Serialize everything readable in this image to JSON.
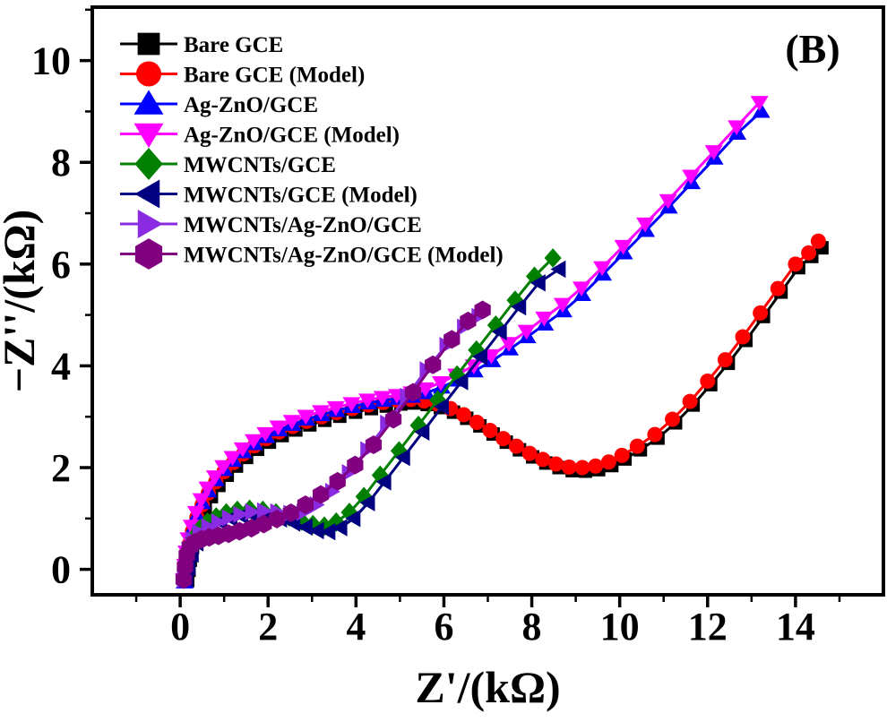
{
  "panel_label": "(B)",
  "chart_data": {
    "type": "scatter",
    "title": "",
    "xlabel": "Z'/(kΩ)",
    "ylabel": "−Z''/(kΩ)",
    "xlim": [
      -2,
      16
    ],
    "ylim": [
      -0.5,
      11.05
    ],
    "x_major_ticks": [
      0,
      2,
      4,
      6,
      8,
      10,
      12,
      14
    ],
    "x_minor_ticks": [
      -1,
      1,
      3,
      5,
      7,
      9,
      11,
      13,
      15
    ],
    "y_major_ticks": [
      0,
      2,
      4,
      6,
      8,
      10
    ],
    "y_minor_ticks": [
      1,
      3,
      5,
      7,
      9,
      11
    ],
    "grid": false,
    "legend_position": "top-left",
    "frame_color": "#000000",
    "series": [
      {
        "name": "Bare GCE",
        "marker": "square",
        "color": "#000000",
        "marker_size": 15,
        "points": [
          [
            0.17,
            -0.22
          ],
          [
            0.2,
            -0.02
          ],
          [
            0.23,
            0.18
          ],
          [
            0.28,
            0.43
          ],
          [
            0.35,
            0.68
          ],
          [
            0.45,
            0.95
          ],
          [
            0.57,
            1.2
          ],
          [
            0.71,
            1.43
          ],
          [
            0.88,
            1.65
          ],
          [
            1.07,
            1.85
          ],
          [
            1.28,
            2.03
          ],
          [
            1.51,
            2.2
          ],
          [
            1.76,
            2.36
          ],
          [
            2.03,
            2.5
          ],
          [
            2.32,
            2.63
          ],
          [
            2.63,
            2.74
          ],
          [
            2.95,
            2.84
          ],
          [
            3.29,
            2.93
          ],
          [
            3.63,
            3.01
          ],
          [
            3.99,
            3.09
          ],
          [
            4.35,
            3.16
          ],
          [
            4.69,
            3.21
          ],
          [
            5.02,
            3.25
          ],
          [
            5.32,
            3.27
          ],
          [
            5.62,
            3.24
          ],
          [
            5.92,
            3.18
          ],
          [
            6.22,
            3.09
          ],
          [
            6.52,
            2.97
          ],
          [
            6.82,
            2.82
          ],
          [
            7.12,
            2.66
          ],
          [
            7.42,
            2.5
          ],
          [
            7.72,
            2.35
          ],
          [
            8.02,
            2.21
          ],
          [
            8.32,
            2.09
          ],
          [
            8.62,
            2.0
          ],
          [
            8.92,
            1.94
          ],
          [
            9.22,
            1.93
          ],
          [
            9.52,
            1.96
          ],
          [
            9.82,
            2.04
          ],
          [
            10.12,
            2.17
          ],
          [
            10.47,
            2.35
          ],
          [
            10.87,
            2.58
          ],
          [
            11.27,
            2.88
          ],
          [
            11.67,
            3.23
          ],
          [
            12.07,
            3.63
          ],
          [
            12.47,
            4.05
          ],
          [
            12.87,
            4.5
          ],
          [
            13.27,
            4.97
          ],
          [
            13.67,
            5.45
          ],
          [
            14.07,
            5.93
          ],
          [
            14.37,
            6.15
          ],
          [
            14.6,
            6.32
          ]
        ]
      },
      {
        "name": "Bare GCE (Model)",
        "marker": "circle",
        "color": "#FF0000",
        "marker_size": 17,
        "points": [
          [
            0.1,
            -0.15
          ],
          [
            0.13,
            0.05
          ],
          [
            0.16,
            0.25
          ],
          [
            0.21,
            0.5
          ],
          [
            0.28,
            0.75
          ],
          [
            0.38,
            1.02
          ],
          [
            0.5,
            1.27
          ],
          [
            0.64,
            1.5
          ],
          [
            0.81,
            1.72
          ],
          [
            1.0,
            1.92
          ],
          [
            1.21,
            2.1
          ],
          [
            1.44,
            2.27
          ],
          [
            1.69,
            2.43
          ],
          [
            1.96,
            2.57
          ],
          [
            2.25,
            2.7
          ],
          [
            2.56,
            2.81
          ],
          [
            2.88,
            2.91
          ],
          [
            3.22,
            3.0
          ],
          [
            3.56,
            3.08
          ],
          [
            3.92,
            3.16
          ],
          [
            4.28,
            3.23
          ],
          [
            4.62,
            3.28
          ],
          [
            4.95,
            3.32
          ],
          [
            5.25,
            3.34
          ],
          [
            5.55,
            3.31
          ],
          [
            5.85,
            3.25
          ],
          [
            6.15,
            3.16
          ],
          [
            6.45,
            3.04
          ],
          [
            6.75,
            2.89
          ],
          [
            7.05,
            2.73
          ],
          [
            7.35,
            2.57
          ],
          [
            7.65,
            2.42
          ],
          [
            7.95,
            2.28
          ],
          [
            8.25,
            2.16
          ],
          [
            8.55,
            2.07
          ],
          [
            8.85,
            2.01
          ],
          [
            9.15,
            2.0
          ],
          [
            9.45,
            2.03
          ],
          [
            9.75,
            2.11
          ],
          [
            10.05,
            2.24
          ],
          [
            10.4,
            2.42
          ],
          [
            10.8,
            2.65
          ],
          [
            11.2,
            2.95
          ],
          [
            11.6,
            3.3
          ],
          [
            12.0,
            3.7
          ],
          [
            12.4,
            4.12
          ],
          [
            12.8,
            4.57
          ],
          [
            13.2,
            5.04
          ],
          [
            13.6,
            5.52
          ],
          [
            14.0,
            6.0
          ],
          [
            14.3,
            6.22
          ],
          [
            14.52,
            6.45
          ]
        ]
      },
      {
        "name": "Ag-ZnO/GCE",
        "marker": "triangle-up",
        "color": "#0000FF",
        "marker_size": 19,
        "points": [
          [
            0.1,
            -0.25
          ],
          [
            0.13,
            0.02
          ],
          [
            0.16,
            0.28
          ],
          [
            0.21,
            0.54
          ],
          [
            0.28,
            0.79
          ],
          [
            0.38,
            1.06
          ],
          [
            0.5,
            1.31
          ],
          [
            0.64,
            1.54
          ],
          [
            0.81,
            1.76
          ],
          [
            1.0,
            1.96
          ],
          [
            1.21,
            2.14
          ],
          [
            1.44,
            2.31
          ],
          [
            1.69,
            2.47
          ],
          [
            1.96,
            2.61
          ],
          [
            2.25,
            2.74
          ],
          [
            2.56,
            2.85
          ],
          [
            2.88,
            2.95
          ],
          [
            3.22,
            3.04
          ],
          [
            3.56,
            3.12
          ],
          [
            3.92,
            3.2
          ],
          [
            4.28,
            3.27
          ],
          [
            4.62,
            3.32
          ],
          [
            4.95,
            3.36
          ],
          [
            5.28,
            3.4
          ],
          [
            5.6,
            3.47
          ],
          [
            5.95,
            3.58
          ],
          [
            6.3,
            3.72
          ],
          [
            6.7,
            3.9
          ],
          [
            7.1,
            4.1
          ],
          [
            7.5,
            4.33
          ],
          [
            7.9,
            4.57
          ],
          [
            8.3,
            4.82
          ],
          [
            8.72,
            5.08
          ],
          [
            9.15,
            5.4
          ],
          [
            9.62,
            5.8
          ],
          [
            10.1,
            6.22
          ],
          [
            10.6,
            6.66
          ],
          [
            11.12,
            7.12
          ],
          [
            11.64,
            7.6
          ],
          [
            12.16,
            8.08
          ],
          [
            12.68,
            8.57
          ],
          [
            13.22,
            9.0
          ]
        ]
      },
      {
        "name": "Ag-ZnO/GCE (Model)",
        "marker": "triangle-down",
        "color": "#FF00FF",
        "marker_size": 19,
        "points": [
          [
            0.08,
            -0.2
          ],
          [
            0.11,
            0.08
          ],
          [
            0.14,
            0.34
          ],
          [
            0.19,
            0.6
          ],
          [
            0.26,
            0.85
          ],
          [
            0.36,
            1.12
          ],
          [
            0.48,
            1.37
          ],
          [
            0.62,
            1.6
          ],
          [
            0.79,
            1.82
          ],
          [
            0.98,
            2.02
          ],
          [
            1.19,
            2.2
          ],
          [
            1.42,
            2.37
          ],
          [
            1.67,
            2.53
          ],
          [
            1.94,
            2.67
          ],
          [
            2.23,
            2.8
          ],
          [
            2.54,
            2.91
          ],
          [
            2.86,
            3.01
          ],
          [
            3.2,
            3.1
          ],
          [
            3.54,
            3.18
          ],
          [
            3.9,
            3.26
          ],
          [
            4.26,
            3.33
          ],
          [
            4.6,
            3.38
          ],
          [
            4.93,
            3.42
          ],
          [
            5.26,
            3.47
          ],
          [
            5.58,
            3.55
          ],
          [
            5.93,
            3.67
          ],
          [
            6.28,
            3.82
          ],
          [
            6.68,
            4.0
          ],
          [
            7.08,
            4.2
          ],
          [
            7.48,
            4.44
          ],
          [
            7.88,
            4.68
          ],
          [
            8.28,
            4.94
          ],
          [
            8.7,
            5.21
          ],
          [
            9.13,
            5.53
          ],
          [
            9.6,
            5.93
          ],
          [
            10.08,
            6.35
          ],
          [
            10.58,
            6.79
          ],
          [
            11.1,
            7.25
          ],
          [
            11.62,
            7.73
          ],
          [
            12.14,
            8.21
          ],
          [
            12.66,
            8.7
          ],
          [
            13.18,
            9.18
          ]
        ]
      },
      {
        "name": "MWCNTs/GCE",
        "marker": "diamond",
        "color": "#007F00",
        "marker_size": 19,
        "points": [
          [
            0.1,
            -0.1
          ],
          [
            0.14,
            0.15
          ],
          [
            0.2,
            0.4
          ],
          [
            0.3,
            0.62
          ],
          [
            0.45,
            0.8
          ],
          [
            0.62,
            0.93
          ],
          [
            0.82,
            1.03
          ],
          [
            1.05,
            1.11
          ],
          [
            1.3,
            1.16
          ],
          [
            1.58,
            1.18
          ],
          [
            1.88,
            1.16
          ],
          [
            2.18,
            1.11
          ],
          [
            2.48,
            1.03
          ],
          [
            2.76,
            0.95
          ],
          [
            3.02,
            0.88
          ],
          [
            3.28,
            0.85
          ],
          [
            3.55,
            0.93
          ],
          [
            3.85,
            1.12
          ],
          [
            4.18,
            1.43
          ],
          [
            4.55,
            1.85
          ],
          [
            4.98,
            2.33
          ],
          [
            5.42,
            2.83
          ],
          [
            5.86,
            3.33
          ],
          [
            6.3,
            3.82
          ],
          [
            6.74,
            4.31
          ],
          [
            7.18,
            4.8
          ],
          [
            7.62,
            5.29
          ],
          [
            8.06,
            5.76
          ],
          [
            8.48,
            6.12
          ]
        ]
      },
      {
        "name": "MWCNTs/GCE (Model)",
        "marker": "triangle-left",
        "color": "#000080",
        "marker_size": 19,
        "points": [
          [
            0.15,
            -0.18
          ],
          [
            0.2,
            0.05
          ],
          [
            0.27,
            0.3
          ],
          [
            0.38,
            0.52
          ],
          [
            0.53,
            0.7
          ],
          [
            0.71,
            0.83
          ],
          [
            0.92,
            0.93
          ],
          [
            1.15,
            1.0
          ],
          [
            1.4,
            1.05
          ],
          [
            1.68,
            1.06
          ],
          [
            1.98,
            1.04
          ],
          [
            2.28,
            0.99
          ],
          [
            2.58,
            0.91
          ],
          [
            2.86,
            0.83
          ],
          [
            3.12,
            0.76
          ],
          [
            3.38,
            0.74
          ],
          [
            3.65,
            0.82
          ],
          [
            3.95,
            1.0
          ],
          [
            4.28,
            1.31
          ],
          [
            4.65,
            1.72
          ],
          [
            5.08,
            2.2
          ],
          [
            5.52,
            2.7
          ],
          [
            5.96,
            3.2
          ],
          [
            6.4,
            3.69
          ],
          [
            6.84,
            4.18
          ],
          [
            7.28,
            4.67
          ],
          [
            7.72,
            5.16
          ],
          [
            8.16,
            5.63
          ],
          [
            8.62,
            5.9
          ]
        ]
      },
      {
        "name": "MWCNTs/Ag-ZnO/GCE",
        "marker": "triangle-right",
        "color": "#8A2BE2",
        "marker_size": 19,
        "points": [
          [
            0.08,
            -0.2
          ],
          [
            0.12,
            0.1
          ],
          [
            0.18,
            0.38
          ],
          [
            0.28,
            0.58
          ],
          [
            0.43,
            0.73
          ],
          [
            0.63,
            0.84
          ],
          [
            0.86,
            0.93
          ],
          [
            1.1,
            1.01
          ],
          [
            1.36,
            1.08
          ],
          [
            1.63,
            1.13
          ],
          [
            1.9,
            1.15
          ],
          [
            2.2,
            1.13
          ],
          [
            2.5,
            1.1
          ],
          [
            2.8,
            1.12
          ],
          [
            3.1,
            1.27
          ],
          [
            3.45,
            1.53
          ],
          [
            3.83,
            1.9
          ],
          [
            4.25,
            2.35
          ],
          [
            4.7,
            2.87
          ],
          [
            5.15,
            3.4
          ],
          [
            5.6,
            3.92
          ],
          [
            6.05,
            4.4
          ],
          [
            6.45,
            4.76
          ],
          [
            6.78,
            4.97
          ]
        ]
      },
      {
        "name": "MWCNTs/Ag-ZnO/GCE (Model)",
        "marker": "hexagon",
        "color": "#800080",
        "marker_size": 21,
        "points": [
          [
            0.08,
            -0.2
          ],
          [
            0.11,
            0.05
          ],
          [
            0.15,
            0.28
          ],
          [
            0.22,
            0.44
          ],
          [
            0.33,
            0.53
          ],
          [
            0.48,
            0.59
          ],
          [
            0.66,
            0.63
          ],
          [
            0.87,
            0.66
          ],
          [
            1.1,
            0.7
          ],
          [
            1.35,
            0.75
          ],
          [
            1.62,
            0.81
          ],
          [
            1.9,
            0.89
          ],
          [
            2.2,
            0.99
          ],
          [
            2.52,
            1.11
          ],
          [
            2.85,
            1.27
          ],
          [
            3.2,
            1.47
          ],
          [
            3.58,
            1.73
          ],
          [
            3.98,
            2.05
          ],
          [
            4.4,
            2.45
          ],
          [
            4.85,
            2.95
          ],
          [
            5.3,
            3.48
          ],
          [
            5.75,
            4.02
          ],
          [
            6.18,
            4.52
          ],
          [
            6.55,
            4.88
          ],
          [
            6.88,
            5.1
          ]
        ]
      }
    ]
  }
}
